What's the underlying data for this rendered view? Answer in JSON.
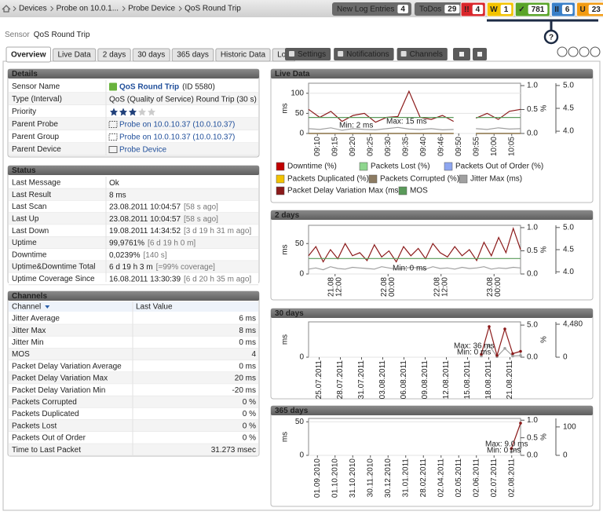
{
  "breadcrumb": [
    "Devices",
    "Probe on 10.0.1...",
    "Probe Device",
    "QoS Round Trip"
  ],
  "top_buttons": [
    {
      "label": "New Log Entries",
      "count": 4
    },
    {
      "label": "ToDos",
      "count": 29
    }
  ],
  "status_counts": [
    {
      "icon": "!!",
      "count": 4,
      "color": "#d9262b"
    },
    {
      "icon": "W",
      "count": 1,
      "color": "#f3c300"
    },
    {
      "icon": "✓",
      "count": 781,
      "color": "#5aa428"
    },
    {
      "icon": "II",
      "count": 6,
      "color": "#3a7fc8"
    },
    {
      "icon": "U",
      "count": 23,
      "color": "#f29b12"
    }
  ],
  "help": "?",
  "title": {
    "prefix": "Sensor",
    "name": "QoS Round Trip"
  },
  "tabs": [
    "Overview",
    "Live Data",
    "2 days",
    "30 days",
    "365 days",
    "Historic Data",
    "Log"
  ],
  "actions": [
    "Settings",
    "Notifications",
    "Channels"
  ],
  "details": {
    "title": "Details",
    "rows": [
      {
        "label": "Sensor Name",
        "value": "QoS Round Trip",
        "note": "(ID 5580)"
      },
      {
        "label": "Type (Interval)",
        "value": "QoS (Quality of Service) Round Trip (30 s)"
      },
      {
        "label": "Priority",
        "stars": 3
      },
      {
        "label": "Parent Probe",
        "value": "Probe on 10.0.10.37 (10.0.10.37)"
      },
      {
        "label": "Parent Group",
        "value": "Probe on 10.0.10.37 (10.0.10.37)"
      },
      {
        "label": "Parent Device",
        "value": "Probe Device"
      }
    ]
  },
  "status": {
    "title": "Status",
    "rows": [
      [
        "Last Message",
        "Ok"
      ],
      [
        "Last Result",
        "8 ms"
      ],
      [
        "Last Scan",
        "23.08.2011 10:04:57",
        "[58 s ago]"
      ],
      [
        "Last Up",
        "23.08.2011 10:04:57",
        "[58 s ago]"
      ],
      [
        "Last Down",
        "19.08.2011 14:34:52",
        "[3 d 19 h 31 m ago]"
      ],
      [
        "Uptime",
        "99,9761%",
        "[6 d 19 h 0 m]"
      ],
      [
        "Downtime",
        "0,0239%",
        "[140 s]"
      ],
      [
        "Uptime&Downtime Total",
        "6 d 19 h 3 m",
        "[=99% coverage]"
      ],
      [
        "Uptime Coverage Since",
        "16.08.2011 13:30:39",
        "[6 d 20 h 35 m ago]"
      ]
    ]
  },
  "channels": {
    "title": "Channels",
    "columns": [
      "Channel",
      "Last Value"
    ],
    "rows": [
      [
        "Jitter Average",
        "6 ms"
      ],
      [
        "Jitter Max",
        "8 ms"
      ],
      [
        "Jitter Min",
        "0 ms"
      ],
      [
        "MOS",
        "4"
      ],
      [
        "Packet Delay Variation Average",
        "0 ms"
      ],
      [
        "Packet Delay Variation Max",
        "20 ms"
      ],
      [
        "Packet Delay Variation Min",
        "-20 ms"
      ],
      [
        "Packets Corrupted",
        "0 %"
      ],
      [
        "Packets Duplicated",
        "0 %"
      ],
      [
        "Packets Lost",
        "0 %"
      ],
      [
        "Packets Out of Order",
        "0 %"
      ],
      [
        "Time to Last Packet",
        "31.273 msec"
      ]
    ]
  },
  "charts": [
    {
      "type": "line",
      "title": "Live Data",
      "legend": true,
      "y_unit": "ms",
      "y2_unit": "%",
      "ylim": [
        0,
        125
      ],
      "yticks": [
        0,
        50,
        100
      ],
      "y2lim": [
        0,
        1.05
      ],
      "y2ticks": [
        {
          "value": 0,
          "label": "0.0"
        },
        {
          "value": 0.5,
          "label": "0.5"
        },
        {
          "value": 1,
          "label": "1.0"
        }
      ],
      "y3lim": [
        3.95,
        5.05
      ],
      "y3ticks": [
        {
          "value": 4,
          "label": "4.0"
        },
        {
          "value": 4.5,
          "label": "4.5"
        },
        {
          "value": 5,
          "label": "5.0"
        }
      ],
      "xlabels": [
        "09:10",
        "09:15",
        "09:20",
        "09:25",
        "09:30",
        "09:35",
        "09:40",
        "09:46",
        "09:50",
        "09:55",
        "10:00",
        "10:05"
      ],
      "annotations": [
        "Min: 2 ms",
        "Max: 15 ms"
      ],
      "series": [
        {
          "name": "Downtime (%)",
          "color": "#c00000",
          "axis": "y2",
          "values": [
            0,
            0,
            0,
            0,
            0,
            0,
            0,
            0,
            0,
            0,
            0,
            0,
            0,
            0,
            null,
            0,
            0,
            0,
            0,
            0
          ]
        },
        {
          "name": "Packets Lost (%)",
          "color": "#8fd68f",
          "axis": "y2",
          "values": [
            0,
            0,
            0,
            0,
            0,
            0,
            0,
            0,
            0,
            0,
            0,
            0,
            0,
            0,
            null,
            0,
            0,
            0,
            0,
            0
          ]
        },
        {
          "name": "Packets Out of Order (%)",
          "color": "#8ea6f0",
          "axis": "y2",
          "values": [
            0,
            0,
            0,
            0,
            0,
            0,
            0,
            0,
            0,
            0,
            0,
            0,
            0,
            0,
            null,
            0,
            0,
            0,
            0,
            0
          ]
        },
        {
          "name": "Packets Duplicated (%)",
          "color": "#f2c200",
          "axis": "y2",
          "values": [
            0,
            0,
            0,
            0,
            0,
            0,
            0,
            0,
            0,
            0,
            0,
            0,
            0,
            0,
            null,
            0,
            0,
            0,
            0,
            0
          ]
        },
        {
          "name": "Packets Corrupted (%)",
          "color": "#8c7b62",
          "axis": "y2",
          "values": [
            0,
            0,
            0,
            0,
            0,
            0,
            0,
            0,
            0,
            0,
            0,
            0,
            0,
            0,
            null,
            0,
            0,
            0,
            0,
            0
          ]
        },
        {
          "name": "Jitter Max (ms)",
          "color": "#a0a0a0",
          "values": [
            12,
            10,
            14,
            8,
            12,
            10,
            9,
            12,
            15,
            11,
            10,
            12,
            9,
            10,
            null,
            12,
            10,
            14,
            11,
            12
          ]
        },
        {
          "name": "Packet Delay Variation Max (ms)",
          "color": "#8b1a1a",
          "values": [
            60,
            40,
            55,
            30,
            45,
            50,
            28,
            40,
            42,
            105,
            40,
            35,
            45,
            30,
            null,
            38,
            50,
            35,
            55,
            60
          ]
        },
        {
          "name": "MOS",
          "color": "#5a9a5a",
          "axis": "y3",
          "values": [
            4.3,
            4.3,
            4.3,
            4.3,
            4.3,
            4.3,
            4.3,
            4.3,
            4.3,
            4.3,
            4.3,
            4.3,
            4.3,
            4.3,
            null,
            4.3,
            4.3,
            4.3,
            4.3,
            4.3
          ]
        }
      ]
    },
    {
      "type": "line",
      "title": "2 days",
      "y_unit": "ms",
      "y2_unit": "%",
      "ylim": [
        0,
        80
      ],
      "yticks": [
        0,
        50
      ],
      "y2lim": [
        0,
        1.05
      ],
      "y2ticks": [
        {
          "value": 0,
          "label": "0.0"
        },
        {
          "value": 0.5,
          "label": "0.5"
        },
        {
          "value": 1,
          "label": "1.0"
        }
      ],
      "y3lim": [
        3.95,
        5.05
      ],
      "y3ticks": [
        {
          "value": 4,
          "label": "4.0"
        },
        {
          "value": 4.5,
          "label": "4.5"
        },
        {
          "value": 5,
          "label": "5.0"
        }
      ],
      "xlabels": [
        [
          "21.08",
          "12:00"
        ],
        [
          "22.08",
          "00:00"
        ],
        [
          "22.08",
          "12:00"
        ],
        [
          "23.08",
          "00:00"
        ]
      ],
      "annotations": [
        "Min: 0 ms"
      ],
      "series": [
        {
          "color": "#a0a0a0",
          "values": [
            8,
            10,
            7,
            12,
            9,
            8,
            11,
            10,
            9,
            8,
            12,
            10,
            8,
            9,
            11,
            10,
            8,
            12,
            9,
            10,
            8,
            11,
            9,
            10,
            12,
            8,
            10,
            9,
            11,
            10
          ]
        },
        {
          "color": "#8b1a1a",
          "values": [
            30,
            45,
            20,
            40,
            25,
            50,
            30,
            35,
            22,
            48,
            28,
            38,
            20,
            45,
            30,
            42,
            25,
            50,
            35,
            28,
            45,
            30,
            40,
            22,
            52,
            30,
            60,
            35,
            75,
            40
          ]
        },
        {
          "color": "#5a9a5a",
          "axis": "y3",
          "values": [
            4.3,
            4.3,
            4.3,
            4.3,
            4.3,
            4.3,
            4.3,
            4.3,
            4.3,
            4.3,
            4.3,
            4.3,
            4.3,
            4.3,
            4.3,
            4.3,
            4.3,
            4.3,
            4.3,
            4.3,
            4.3,
            4.3,
            4.3,
            4.3,
            4.3,
            4.3,
            4.3,
            4.3,
            4.3,
            4.3
          ]
        }
      ]
    },
    {
      "type": "line",
      "title": "30 days",
      "y_unit": "ms",
      "y2_unit": "%",
      "ylim": [
        0,
        60
      ],
      "yticks": [
        0
      ],
      "y2lim": [
        0,
        5.5
      ],
      "y2ticks": [
        {
          "value": 0,
          "label": "0.0"
        },
        {
          "value": 5,
          "label": "5.0"
        }
      ],
      "y3lim": [
        0,
        4800
      ],
      "y3ticks": [
        0,
        {
          "value": 4480,
          "label": "4,480"
        }
      ],
      "xlabels": [
        "25.07.2011",
        "28.07.2011",
        "31.07.2011",
        "03.08.2011",
        "06.08.2011",
        "09.08.2011",
        "12.08.2011",
        "15.08.2011",
        "18.08.2011",
        "21.08.2011"
      ],
      "annotations": [
        "Max: 36 ms",
        "Min: 0 ms"
      ],
      "series": [
        {
          "color": "#a0a0a0",
          "values": [
            null,
            null,
            null,
            null,
            null,
            null,
            null,
            null,
            null,
            null,
            null,
            null,
            null,
            null,
            null,
            null,
            null,
            null,
            null,
            null,
            null,
            null,
            2,
            20,
            1,
            15,
            2,
            3
          ]
        },
        {
          "color": "#8b1a1a",
          "values": [
            null,
            null,
            null,
            null,
            null,
            null,
            null,
            null,
            null,
            null,
            null,
            null,
            null,
            null,
            null,
            null,
            null,
            null,
            null,
            null,
            null,
            null,
            5,
            52,
            3,
            48,
            6,
            10
          ]
        }
      ]
    },
    {
      "type": "line",
      "title": "365 days",
      "y_unit": "ms",
      "y2_unit": "%",
      "ylim": [
        0,
        55
      ],
      "yticks": [
        0,
        50
      ],
      "y2lim": [
        0,
        1.05
      ],
      "y2ticks": [
        {
          "value": 0,
          "label": "0.0"
        },
        {
          "value": 0.5,
          "label": "0.5"
        },
        {
          "value": 1,
          "label": "1.0"
        }
      ],
      "y3lim": [
        0,
        130
      ],
      "y3ticks": [
        0,
        100
      ],
      "xlabels": [
        "01.09.2010",
        "01.10.2010",
        "31.10.2010",
        "30.11.2010",
        "30.12.2010",
        "31.01.2011",
        "28.02.2011",
        "02.04.2011",
        "02.05.2011",
        "02.06.2011",
        "02.07.2011",
        "02.08.2011"
      ],
      "annotations": [
        "Max: 9.0 ms",
        "Min: 0 ms"
      ],
      "series": [
        {
          "color": "#a0a0a0",
          "values": [
            null,
            null,
            null,
            null,
            null,
            null,
            null,
            null,
            null,
            null,
            null,
            null,
            null,
            null,
            null,
            null,
            null,
            null,
            null,
            null,
            null,
            null,
            5,
            12
          ]
        },
        {
          "color": "#8b1a1a",
          "values": [
            null,
            null,
            null,
            null,
            null,
            null,
            null,
            null,
            null,
            null,
            null,
            null,
            null,
            null,
            null,
            null,
            null,
            null,
            null,
            null,
            null,
            null,
            10,
            48
          ]
        }
      ]
    }
  ]
}
